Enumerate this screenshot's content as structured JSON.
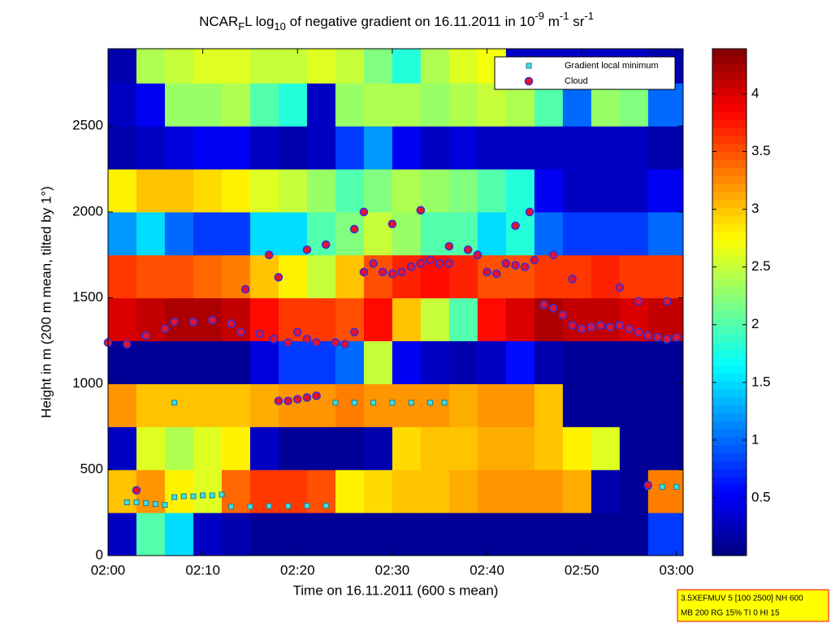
{
  "chart_data": {
    "type": "heatmap",
    "title_segments": [
      "NCAR",
      "F",
      "L log",
      "10",
      " of negative gradient on 16.11.2011 in 10",
      "-9",
      " m",
      "-1",
      " sr",
      "-1"
    ],
    "x_label": "Time on 16.11.2011 (600 s mean)",
    "y_label": "Height in m (200 m mean, tilted by 1°)",
    "xlim": [
      0,
      60.7
    ],
    "xticks": [
      {
        "value": 0,
        "label": "02:00"
      },
      {
        "value": 10,
        "label": "02:10"
      },
      {
        "value": 20,
        "label": "02:20"
      },
      {
        "value": 30,
        "label": "02:30"
      },
      {
        "value": 40,
        "label": "02:40"
      },
      {
        "value": 50,
        "label": "02:50"
      },
      {
        "value": 60,
        "label": "03:00"
      }
    ],
    "ylim": [
      0,
      2950
    ],
    "yticks": [
      0,
      500,
      1000,
      1500,
      2000,
      2500
    ],
    "colorbar_lim": [
      0,
      4.39
    ],
    "colorbar_ticks": [
      0.5,
      1,
      1.5,
      2,
      2.5,
      3,
      3.5,
      4
    ],
    "colormap": "jet",
    "x_bins": [
      0,
      3,
      6,
      9,
      12,
      15,
      18,
      21,
      24,
      27,
      30,
      33,
      36,
      39,
      42,
      45,
      48,
      51,
      54,
      57,
      60.7
    ],
    "y_bins": [
      0,
      250,
      500,
      750,
      1000,
      1250,
      1500,
      1750,
      2000,
      2250,
      2500,
      2750,
      2950
    ],
    "z": [
      [
        0.3,
        2.0,
        1.5,
        0.3,
        0.2,
        0.1,
        0.1,
        0.1,
        0.1,
        0.1,
        0.1,
        0.1,
        0.1,
        0.1,
        0.1,
        0.1,
        0.1,
        0.1,
        0.1,
        0.8
      ],
      [
        3.0,
        3.2,
        2.8,
        2.6,
        3.4,
        3.6,
        3.6,
        3.5,
        2.8,
        2.9,
        3.0,
        3.0,
        3.1,
        3.2,
        3.2,
        3.2,
        3.1,
        0.2,
        0.1,
        3.3
      ],
      [
        0.3,
        2.6,
        2.4,
        2.6,
        2.8,
        0.3,
        0.1,
        0.1,
        0.1,
        0.2,
        2.9,
        3.0,
        3.0,
        3.1,
        3.1,
        3.0,
        2.8,
        2.6,
        0.1,
        0.1
      ],
      [
        3.2,
        3.0,
        3.0,
        3.0,
        3.0,
        3.1,
        3.2,
        3.2,
        3.3,
        3.2,
        3.2,
        3.2,
        3.1,
        3.2,
        3.2,
        3.0,
        0.1,
        0.1,
        0.1,
        0.1
      ],
      [
        0.1,
        0.1,
        0.1,
        0.1,
        0.1,
        0.4,
        0.8,
        0.8,
        1.0,
        2.5,
        0.5,
        0.3,
        0.2,
        0.3,
        0.6,
        0.2,
        0.1,
        0.1,
        0.1,
        0.1
      ],
      [
        4.0,
        4.1,
        4.2,
        4.2,
        4.1,
        3.8,
        3.6,
        3.6,
        3.5,
        3.8,
        3.0,
        2.5,
        2.0,
        3.8,
        4.0,
        4.2,
        4.1,
        4.1,
        4.0,
        4.1
      ],
      [
        3.6,
        3.5,
        3.5,
        3.4,
        3.3,
        3.0,
        2.8,
        2.5,
        3.0,
        3.5,
        3.7,
        3.8,
        3.7,
        3.5,
        3.5,
        3.6,
        3.6,
        3.7,
        3.6,
        3.6
      ],
      [
        1.2,
        1.5,
        1.0,
        0.8,
        0.8,
        1.5,
        1.5,
        2.0,
        2.2,
        2.5,
        2.3,
        2.0,
        2.0,
        1.5,
        1.8,
        1.0,
        0.8,
        0.8,
        0.8,
        1.0
      ],
      [
        2.8,
        3.0,
        3.0,
        2.9,
        2.8,
        2.6,
        2.5,
        2.3,
        2.0,
        2.2,
        2.4,
        2.3,
        2.2,
        2.0,
        1.8,
        0.5,
        0.3,
        0.3,
        0.3,
        0.5
      ],
      [
        0.2,
        0.3,
        0.4,
        0.5,
        0.5,
        0.3,
        0.2,
        0.3,
        0.8,
        1.2,
        0.5,
        0.3,
        0.4,
        0.3,
        0.3,
        0.3,
        0.3,
        0.3,
        0.3,
        0.2
      ],
      [
        0.3,
        0.5,
        2.3,
        2.3,
        2.4,
        2.0,
        1.8,
        0.3,
        2.3,
        2.4,
        2.4,
        2.3,
        2.4,
        2.5,
        2.4,
        2.0,
        1.0,
        2.3,
        2.2,
        1.0
      ],
      [
        0.2,
        2.4,
        2.5,
        2.6,
        2.6,
        2.5,
        2.5,
        2.6,
        2.5,
        2.2,
        1.8,
        2.4,
        2.6,
        2.7,
        0.3,
        0.3,
        0.3,
        0.3,
        0.3,
        0.2
      ]
    ],
    "series": [
      {
        "name": "Gradient local minimum",
        "marker": "square",
        "color": "#40e0e0",
        "x": [
          2,
          3,
          4,
          5,
          6,
          7,
          8,
          9,
          10,
          11,
          12,
          13,
          15,
          17,
          19,
          21,
          23,
          7,
          24,
          26,
          28,
          30,
          32,
          34,
          35.5,
          57,
          58.5,
          60
        ],
        "y": [
          310,
          310,
          305,
          300,
          295,
          340,
          345,
          345,
          350,
          350,
          355,
          285,
          285,
          288,
          288,
          290,
          290,
          890,
          890,
          890,
          890,
          890,
          890,
          890,
          890,
          400,
          400,
          400
        ]
      },
      {
        "name": "Cloud",
        "marker": "circle",
        "color": "#e8102a",
        "x": [
          0,
          2,
          4,
          6,
          7,
          9,
          11,
          13,
          14,
          16,
          17.5,
          19,
          20,
          21,
          22,
          24,
          25,
          26,
          27,
          28,
          29,
          30,
          31,
          32,
          33,
          34,
          35,
          36,
          38,
          39,
          40,
          41,
          42,
          43,
          44,
          45,
          46,
          47,
          48,
          49,
          50,
          51,
          52,
          53,
          54,
          55,
          56,
          57,
          58,
          59,
          60,
          18,
          19,
          20,
          21,
          22,
          14.5,
          17,
          18,
          21,
          23,
          26,
          27,
          30,
          33,
          36,
          43,
          44.5,
          47,
          49,
          54,
          56,
          59,
          3,
          57
        ],
        "y": [
          1240,
          1230,
          1280,
          1320,
          1360,
          1360,
          1370,
          1350,
          1300,
          1290,
          1260,
          1240,
          1300,
          1260,
          1240,
          1240,
          1230,
          1300,
          1650,
          1700,
          1650,
          1640,
          1650,
          1680,
          1700,
          1720,
          1700,
          1800,
          1780,
          1750,
          1650,
          1640,
          1700,
          1690,
          1680,
          1720,
          1460,
          1440,
          1400,
          1340,
          1320,
          1330,
          1340,
          1330,
          1340,
          1320,
          1300,
          1280,
          1270,
          1260,
          1270,
          900,
          900,
          910,
          920,
          930,
          1550,
          1750,
          1620,
          1780,
          1810,
          1900,
          2000,
          1930,
          2010,
          1700,
          1920,
          2000,
          1750,
          1610,
          1560,
          1480,
          1480,
          380,
          410
        ]
      }
    ],
    "annotation": [
      "3.5XEFMUV 5 [100 2500] NH 600",
      "MB 200 RG 15% TI 0 HI 15"
    ]
  }
}
